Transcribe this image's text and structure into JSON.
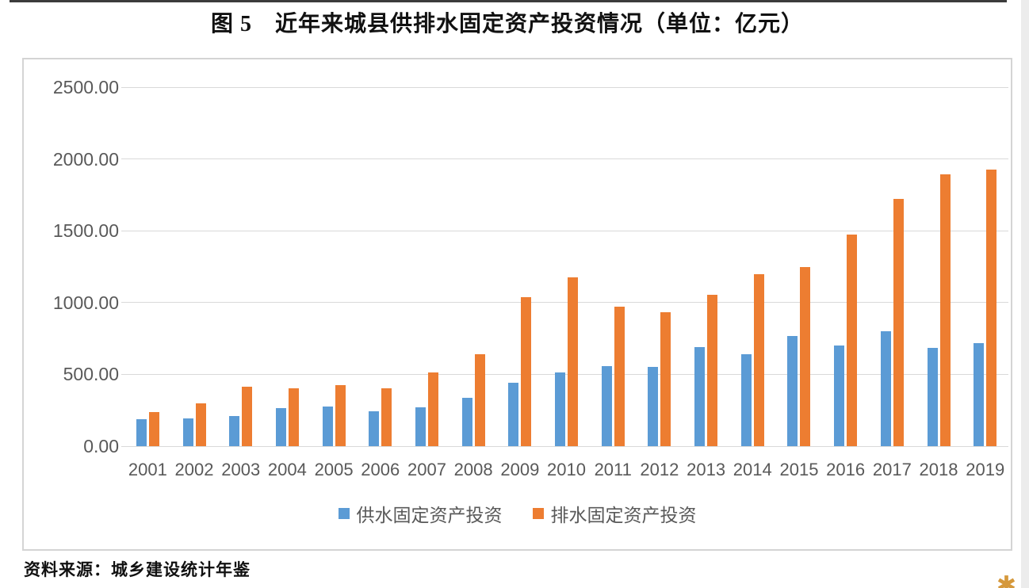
{
  "title": "图 5　近年来城县供排水固定资产投资情况（单位：亿元）",
  "source_note": "资料来源：城乡建设统计年鉴",
  "corner_mark_glyph": "✱",
  "colors": {
    "supply_bar": "#5B9BD5",
    "drainage_bar": "#ED7D31",
    "gridline": "#D9D9D9",
    "axis_text": "#595959"
  },
  "chart_data": {
    "type": "bar",
    "title": "图 5　近年来城县供排水固定资产投资情况（单位：亿元）",
    "unit": "亿元",
    "categories": [
      "2001",
      "2002",
      "2003",
      "2004",
      "2005",
      "2006",
      "2007",
      "2008",
      "2009",
      "2010",
      "2011",
      "2012",
      "2013",
      "2014",
      "2015",
      "2016",
      "2017",
      "2018",
      "2019"
    ],
    "series": [
      {
        "name": "供水固定资产投资",
        "color": "#5B9BD5",
        "values": [
          188,
          195,
          212,
          265,
          277,
          245,
          273,
          338,
          444,
          515,
          558,
          550,
          688,
          642,
          765,
          700,
          798,
          682,
          716
        ]
      },
      {
        "name": "排水固定资产投资",
        "color": "#ED7D31",
        "values": [
          240,
          300,
          414,
          403,
          427,
          403,
          515,
          640,
          1039,
          1176,
          974,
          933,
          1055,
          1196,
          1248,
          1472,
          1720,
          1893,
          1924
        ]
      }
    ],
    "ylim": [
      0,
      2500
    ],
    "ytick_step": 500,
    "ytick_labels": [
      "0.00",
      "500.00",
      "1000.00",
      "1500.00",
      "2000.00",
      "2500.00"
    ],
    "xlabel": "",
    "ylabel": "",
    "grid": true,
    "legend_position": "bottom"
  }
}
